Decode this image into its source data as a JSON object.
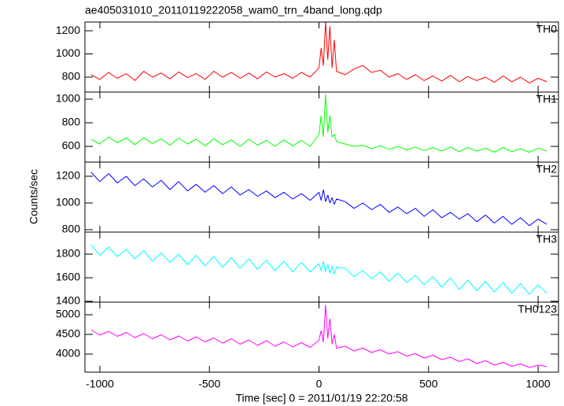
{
  "chart_data": {
    "type": "line",
    "title": "ae405031010_20110119222058_wam0_trn_4band_long.qdp",
    "xlabel": "Time [sec] 0 = 2011/01/19 22:20:58",
    "ylabel": "Counts/sec",
    "xlim": [
      -1068,
      1093
    ],
    "xticks": [
      -1000,
      -500,
      0,
      500,
      1000
    ],
    "x": [
      -1040,
      -1000,
      -960,
      -920,
      -880,
      -840,
      -800,
      -760,
      -720,
      -680,
      -640,
      -600,
      -560,
      -520,
      -480,
      -440,
      -400,
      -360,
      -320,
      -280,
      -240,
      -200,
      -160,
      -120,
      -80,
      -40,
      0,
      10,
      20,
      30,
      40,
      50,
      60,
      70,
      80,
      120,
      160,
      200,
      240,
      280,
      320,
      360,
      400,
      440,
      480,
      520,
      560,
      600,
      640,
      680,
      720,
      760,
      800,
      840,
      880,
      920,
      960,
      1000,
      1040
    ],
    "series": [
      {
        "name": "TH0",
        "color": "#ff0000",
        "ylim": [
          671,
          1275
        ],
        "yticks": [
          800,
          1000,
          1200
        ],
        "values": [
          820,
          780,
          840,
          790,
          830,
          770,
          850,
          800,
          835,
          785,
          845,
          795,
          830,
          780,
          850,
          800,
          840,
          790,
          835,
          785,
          845,
          800,
          830,
          790,
          840,
          800,
          880,
          1050,
          900,
          1280,
          950,
          1240,
          880,
          1120,
          850,
          820,
          870,
          900,
          840,
          860,
          800,
          830,
          780,
          820,
          770,
          810,
          765,
          815,
          760,
          805,
          770,
          800,
          755,
          810,
          760,
          800,
          750,
          790,
          760
        ]
      },
      {
        "name": "TH1",
        "color": "#00ff00",
        "ylim": [
          467,
          1060
        ],
        "yticks": [
          600,
          800,
          1000
        ],
        "values": [
          660,
          620,
          680,
          630,
          670,
          615,
          675,
          625,
          665,
          610,
          670,
          620,
          660,
          605,
          665,
          615,
          655,
          600,
          660,
          610,
          650,
          600,
          655,
          605,
          650,
          600,
          700,
          860,
          680,
          1040,
          720,
          860,
          680,
          700,
          640,
          620,
          600,
          610,
          580,
          605,
          575,
          600,
          570,
          595,
          565,
          590,
          560,
          595,
          555,
          590,
          560,
          585,
          550,
          590,
          555,
          580,
          550,
          585,
          560
        ]
      },
      {
        "name": "TH2",
        "color": "#0000ff",
        "ylim": [
          782,
          1306
        ],
        "yticks": [
          800,
          1000,
          1200
        ],
        "values": [
          1230,
          1160,
          1220,
          1150,
          1200,
          1130,
          1180,
          1120,
          1170,
          1100,
          1160,
          1090,
          1140,
          1080,
          1130,
          1070,
          1120,
          1060,
          1100,
          1050,
          1090,
          1040,
          1080,
          1030,
          1070,
          1020,
          1080,
          1020,
          1100,
          1010,
          1060,
          1000,
          1040,
          990,
          1030,
          1010,
          960,
          1000,
          950,
          990,
          930,
          970,
          920,
          960,
          900,
          950,
          890,
          930,
          880,
          920,
          860,
          910,
          850,
          900,
          840,
          890,
          830,
          880,
          840
        ]
      },
      {
        "name": "TH3",
        "color": "#00ffff",
        "ylim": [
          1393,
          1987
        ],
        "yticks": [
          1400,
          1600,
          1800
        ],
        "values": [
          1880,
          1790,
          1860,
          1780,
          1840,
          1760,
          1830,
          1740,
          1810,
          1730,
          1800,
          1710,
          1790,
          1700,
          1780,
          1690,
          1770,
          1680,
          1760,
          1670,
          1750,
          1660,
          1740,
          1650,
          1730,
          1650,
          1720,
          1660,
          1740,
          1650,
          1710,
          1640,
          1700,
          1630,
          1690,
          1680,
          1610,
          1660,
          1590,
          1650,
          1570,
          1640,
          1560,
          1620,
          1540,
          1610,
          1520,
          1600,
          1500,
          1580,
          1490,
          1570,
          1480,
          1560,
          1470,
          1550,
          1460,
          1540,
          1470
        ]
      },
      {
        "name": "TH0123",
        "color": "#ff00ff",
        "ylim": [
          3540,
          5320
        ],
        "yticks": [
          4000,
          4500,
          5000
        ],
        "values": [
          4620,
          4480,
          4580,
          4450,
          4550,
          4420,
          4520,
          4390,
          4490,
          4360,
          4460,
          4330,
          4440,
          4310,
          4410,
          4280,
          4390,
          4250,
          4360,
          4220,
          4340,
          4200,
          4310,
          4180,
          4290,
          4170,
          4350,
          4600,
          4300,
          5250,
          4400,
          4900,
          4250,
          4500,
          4150,
          4200,
          4080,
          4150,
          4040,
          4110,
          4000,
          4060,
          3950,
          4010,
          3900,
          3970,
          3860,
          3920,
          3810,
          3880,
          3760,
          3830,
          3720,
          3790,
          3690,
          3750,
          3660,
          3720,
          3680
        ]
      }
    ]
  }
}
